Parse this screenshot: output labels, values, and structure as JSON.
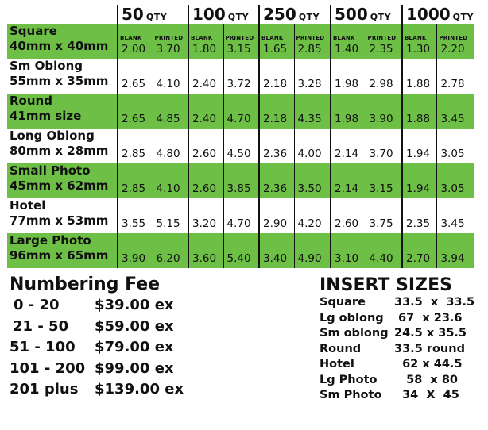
{
  "quantities": [
    {
      "num": "50",
      "label": "QTY"
    },
    {
      "num": "100",
      "label": "QTY"
    },
    {
      "num": "250",
      "label": "QTY"
    },
    {
      "num": "500",
      "label": "QTY"
    },
    {
      "num": "1000",
      "label": "QTY"
    }
  ],
  "sub_labels": {
    "blank": "BLANK",
    "printed": "PRINTED"
  },
  "products": [
    {
      "name": "Square",
      "size": "40mm x 40mm",
      "prices": [
        "2.00",
        "3.70",
        "1.80",
        "3.15",
        "1.65",
        "2.85",
        "1.40",
        "2.35",
        "1.30",
        "2.20"
      ]
    },
    {
      "name": "Sm Oblong",
      "size": "55mm x 35mm",
      "prices": [
        "2.65",
        "4.10",
        "2.40",
        "3.72",
        "2.18",
        "3.28",
        "1.98",
        "2.98",
        "1.88",
        "2.78"
      ]
    },
    {
      "name": "Round",
      "size": "41mm size",
      "prices": [
        "2.65",
        "4.85",
        "2.40",
        "4.70",
        "2.18",
        "4.35",
        "1.98",
        "3.90",
        "1.88",
        "3.45"
      ]
    },
    {
      "name": "Long Oblong",
      "size": "80mm x 28mm",
      "prices": [
        "2.85",
        "4.80",
        "2.60",
        "4.50",
        "2.36",
        "4.00",
        "2.14",
        "3.70",
        "1.94",
        "3.05"
      ]
    },
    {
      "name": "Small Photo",
      "size": "45mm x 62mm",
      "prices": [
        "2.85",
        "4.10",
        "2.60",
        "3.85",
        "2.36",
        "3.50",
        "2.14",
        "3.15",
        "1.94",
        "3.05"
      ]
    },
    {
      "name": "Hotel",
      "size": "77mm x 53mm",
      "prices": [
        "3.55",
        "5.15",
        "3.20",
        "4.70",
        "2.90",
        "4.20",
        "2.60",
        "3.75",
        "2.35",
        "3.45"
      ]
    },
    {
      "name": "Large Photo",
      "size": "96mm x 65mm",
      "prices": [
        "3.90",
        "6.20",
        "3.60",
        "5.40",
        "3.40",
        "4.90",
        "3.10",
        "4.40",
        "2.70",
        "3.94"
      ]
    }
  ],
  "numbering": {
    "title": "Numbering Fee",
    "rows": [
      {
        "range": "0 - 20",
        "fee": "$39.00 ex"
      },
      {
        "range": "21 - 50",
        "fee": "$59.00 ex"
      },
      {
        "range": "51 - 100",
        "fee": "$79.00 ex"
      },
      {
        "range": "101 - 200",
        "fee": "$99.00 ex"
      },
      {
        "range": "201 plus",
        "fee": "$139.00 ex"
      }
    ]
  },
  "inserts": {
    "title": "INSERT SIZES",
    "rows": [
      {
        "name": "Square",
        "size": "33.5  x  33.5"
      },
      {
        "name": "Lg oblong",
        "size": " 67  x 23.6"
      },
      {
        "name": "Sm oblong",
        "size": "24.5 x 35.5"
      },
      {
        "name": "Round",
        "size": "33.5 round"
      },
      {
        "name": "Hotel",
        "size": "  62 x 44.5"
      },
      {
        "name": "Lg Photo",
        "size": "   58  x 80"
      },
      {
        "name": "Sm Photo",
        "size": "  34  X  45"
      }
    ]
  }
}
